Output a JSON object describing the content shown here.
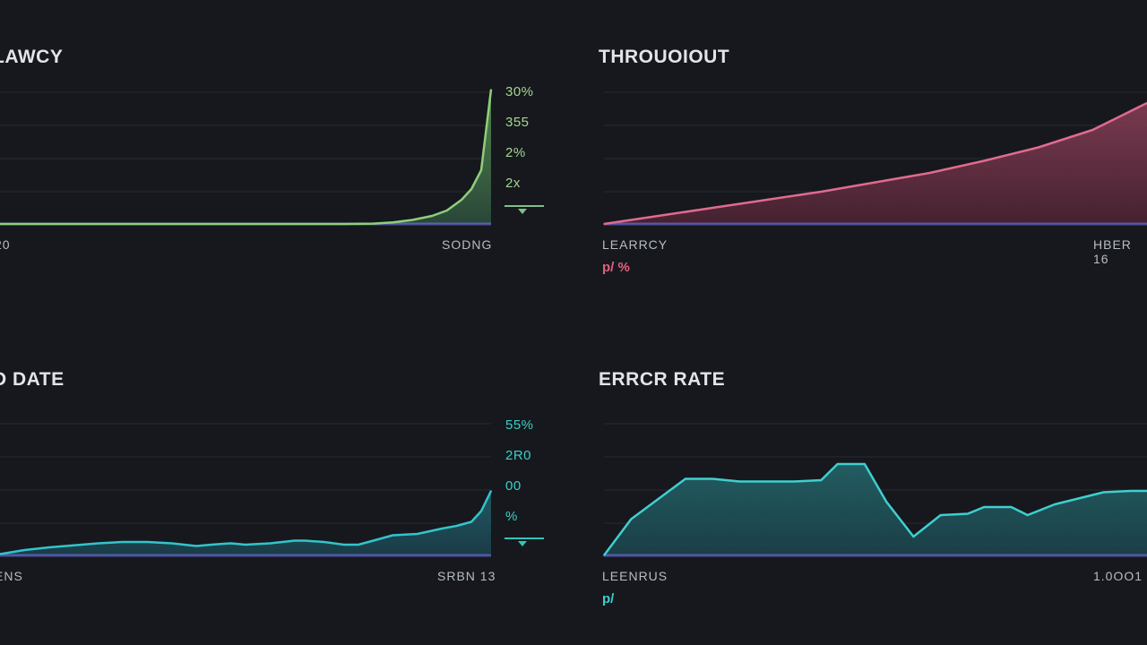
{
  "panels": {
    "latency": {
      "title": "LAWCY",
      "x_start_label": "20",
      "x_end_label": "SODNG",
      "y_labels": [
        "30%",
        "355",
        "2%",
        "2x"
      ]
    },
    "throughput": {
      "title": "THROUOIOUT",
      "x_start_label": "LEARRCY",
      "x_end_label": "HBER 16",
      "sub_label": "p/ %"
    },
    "rate": {
      "title": "D DATE",
      "x_start_label": "ENS",
      "x_end_label": "SRBN 13",
      "y_labels": [
        "55%",
        "2R0",
        "00",
        "%"
      ]
    },
    "error": {
      "title": "ERRCR RATE",
      "x_start_label": "LEENRUS",
      "x_end_label": "1.0OO1",
      "sub_label": "p/"
    }
  },
  "colors": {
    "background": "#16181d",
    "latency_line": "#8fcf7a",
    "latency_fill_top": "#5f9a55",
    "throughput_line": "#e06b8e",
    "throughput_fill": "#6b3448",
    "rate_line": "#33c4cc",
    "rate_fill": "#1f5b66",
    "error_line": "#3fcfcf",
    "error_fill": "#1f5a5f",
    "baseline_glow": "#7b7cff",
    "latency_ylabel": "#a6d68f",
    "rate_ylabel": "#3ad0c6",
    "throughput_sub": "#e0627f",
    "error_sub": "#3fcfcf"
  },
  "chart_data": [
    {
      "type": "area",
      "id": "latency",
      "title": "LAWCY",
      "xlabel": "",
      "ylabel": "",
      "x_tick_labels": [
        "20",
        "SODNG"
      ],
      "y_tick_labels": [
        "30%",
        "355",
        "2%",
        "2x"
      ],
      "x": [
        0,
        10,
        20,
        30,
        40,
        50,
        60,
        70,
        76,
        80,
        84,
        88,
        91,
        94,
        96,
        98,
        100
      ],
      "values": [
        0,
        0,
        0,
        0,
        0,
        0,
        0,
        0,
        0.3,
        1.2,
        3,
        6,
        10,
        18,
        26,
        40,
        100
      ],
      "ylim": [
        0,
        100
      ],
      "grid": true
    },
    {
      "type": "area",
      "id": "throughput",
      "title": "THROUOIOUT",
      "xlabel": "",
      "ylabel": "",
      "x_tick_labels": [
        "LEARRCY",
        "HBER 16"
      ],
      "x": [
        0,
        10,
        20,
        30,
        40,
        50,
        60,
        70,
        80,
        90,
        100
      ],
      "values": [
        0,
        6,
        12,
        18,
        24,
        31,
        38,
        47,
        57,
        70,
        90
      ],
      "ylim": [
        0,
        100
      ],
      "grid": true
    },
    {
      "type": "area",
      "id": "rate",
      "title": "D DATE",
      "xlabel": "",
      "ylabel": "",
      "x_tick_labels": [
        "ENS",
        "SRBN 13"
      ],
      "y_tick_labels": [
        "55%",
        "2R0",
        "00",
        "%"
      ],
      "x": [
        0,
        5,
        10,
        15,
        20,
        25,
        30,
        35,
        40,
        43,
        47,
        50,
        55,
        60,
        62,
        66,
        70,
        73,
        77,
        80,
        85,
        90,
        93,
        96,
        98,
        100
      ],
      "values": [
        1,
        4,
        6,
        7.5,
        9,
        10,
        10,
        9,
        7,
        8,
        9,
        8,
        9,
        11,
        11,
        10,
        8,
        8,
        12,
        15,
        16,
        20,
        22,
        25,
        33,
        48
      ],
      "ylim": [
        0,
        100
      ],
      "grid": true
    },
    {
      "type": "area",
      "id": "error",
      "title": "ERRCR RATE",
      "xlabel": "",
      "ylabel": "",
      "x_tick_labels": [
        "LEENRUS",
        "1.0OO1"
      ],
      "x": [
        0,
        5,
        10,
        15,
        20,
        25,
        30,
        35,
        40,
        43,
        48,
        52,
        57,
        62,
        67,
        70,
        75,
        78,
        83,
        87,
        92,
        97,
        100
      ],
      "values": [
        0,
        27,
        42,
        57,
        57,
        55,
        55,
        55,
        56,
        68,
        68,
        40,
        14,
        30,
        31,
        36,
        36,
        30,
        38,
        42,
        47,
        48,
        48
      ],
      "ylim": [
        0,
        100
      ],
      "grid": true
    }
  ]
}
